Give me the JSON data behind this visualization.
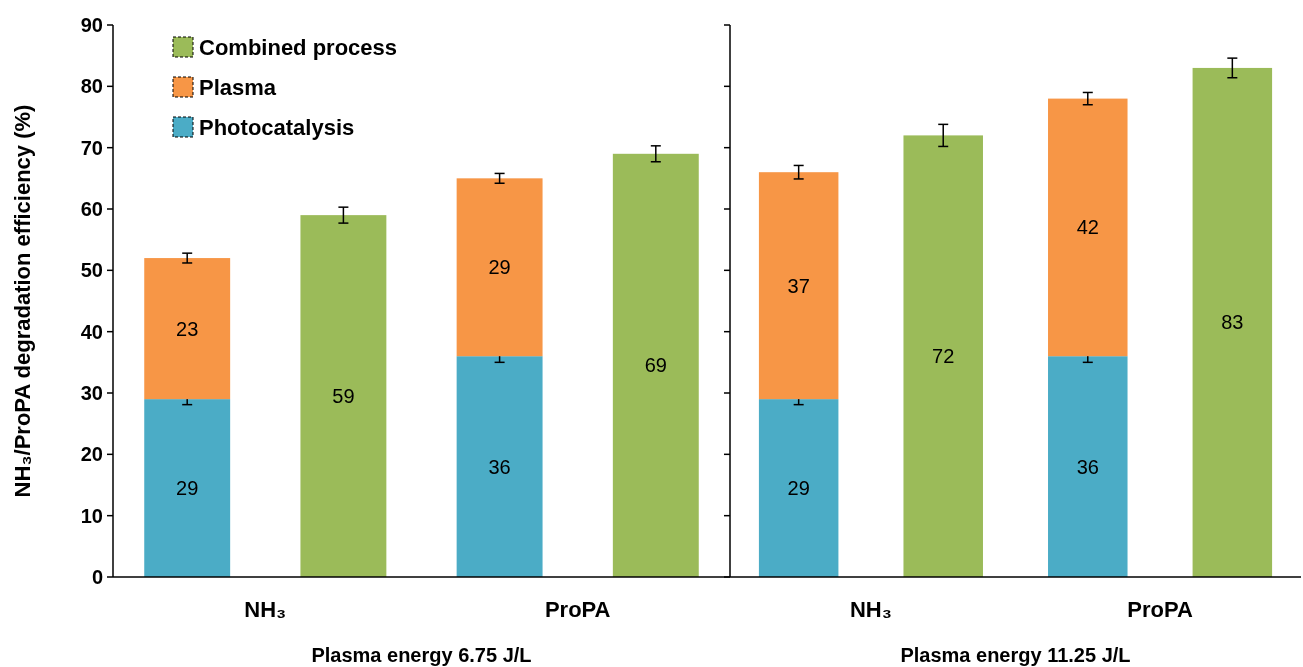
{
  "chart_data": [
    {
      "type": "bar",
      "stacked": true,
      "ylabel": "NH₃/ProPA degradation efficiency (%)",
      "xlabel": "Plasma energy 6.75 J/L",
      "categories": [
        "NH₃",
        null,
        "ProPA",
        null
      ],
      "ylim": [
        0,
        90
      ],
      "yticks": [
        0,
        10,
        20,
        30,
        40,
        50,
        60,
        70,
        80,
        90
      ],
      "legend": "top left",
      "data_labels": true,
      "series": [
        {
          "name": "Photocatalysis",
          "color": "#4bacc6",
          "values": [
            29,
            null,
            36,
            null
          ],
          "errors": [
            0.9,
            null,
            1,
            null
          ]
        },
        {
          "name": "Plasma",
          "color": "#f79646",
          "values": [
            23,
            null,
            29,
            null
          ],
          "errors": [
            0.8,
            null,
            0.8,
            null
          ]
        },
        {
          "name": "Combined process",
          "color": "#9bbb59",
          "values": [
            null,
            59,
            null,
            69
          ],
          "errors": [
            null,
            1.3,
            null,
            1.3
          ]
        }
      ]
    },
    {
      "type": "bar",
      "stacked": true,
      "xlabel": "Plasma energy 11.25 J/L",
      "categories": [
        "NH₃",
        null,
        "ProPA",
        null
      ],
      "ylim": [
        0,
        90
      ],
      "yticks": [
        0,
        10,
        20,
        30,
        40,
        50,
        60,
        70,
        80,
        90
      ],
      "tick_labels": "x",
      "data_labels": true,
      "series": [
        {
          "color": "#4bacc6",
          "values": [
            29,
            null,
            36,
            null
          ],
          "errors": [
            0.9,
            null,
            1,
            null
          ]
        },
        {
          "color": "#f79646",
          "values": [
            37,
            null,
            42,
            null
          ],
          "errors": [
            1.1,
            null,
            1,
            null
          ]
        },
        {
          "color": "#9bbb59",
          "values": [
            null,
            72,
            null,
            83
          ],
          "errors": [
            null,
            1.8,
            null,
            1.6
          ]
        }
      ]
    }
  ]
}
